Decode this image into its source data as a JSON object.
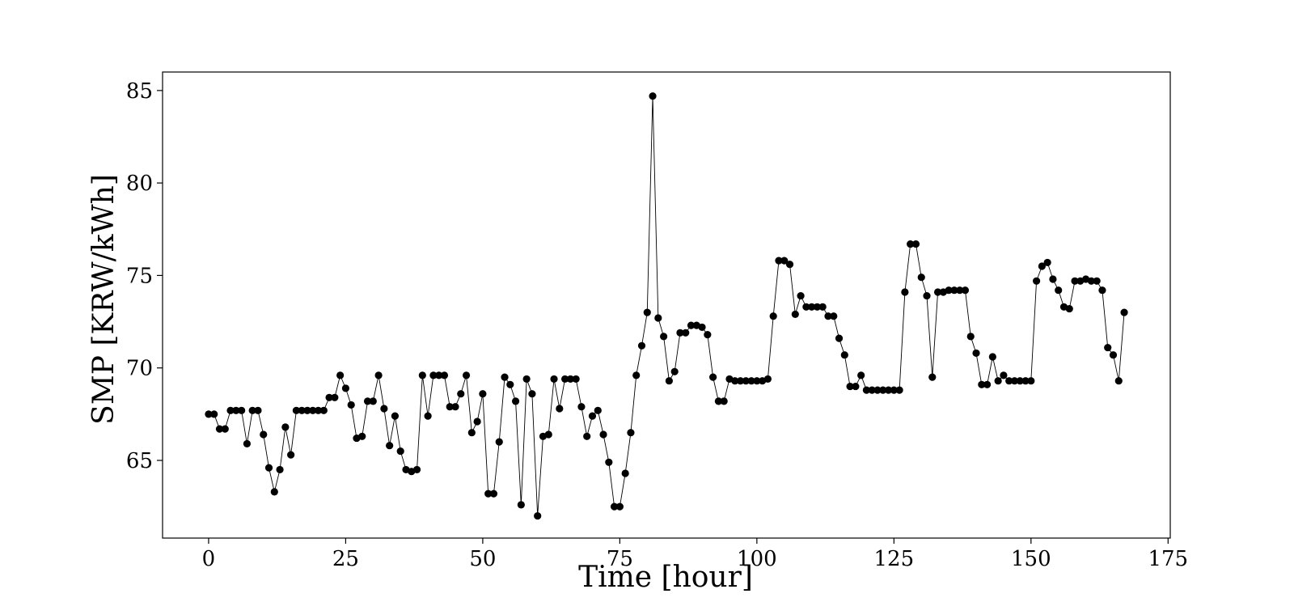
{
  "chart_data": {
    "type": "line",
    "title": "",
    "xlabel": "Time [hour]",
    "ylabel": "SMP [KRW/kWh]",
    "xlim": [
      -8.4,
      175.4
    ],
    "ylim": [
      60.8,
      86.0
    ],
    "xticks": [
      0,
      25,
      50,
      75,
      100,
      125,
      150,
      175
    ],
    "yticks": [
      65,
      70,
      75,
      80,
      85
    ],
    "grid": false,
    "legend": false,
    "marker": "circle",
    "line_color": "#000000",
    "marker_color": "#000000",
    "series": [
      {
        "x_start": 0,
        "x_step": 1,
        "values": [
          67.5,
          67.5,
          66.7,
          66.7,
          67.7,
          67.7,
          67.7,
          65.9,
          67.7,
          67.7,
          66.4,
          64.6,
          63.3,
          64.5,
          66.8,
          65.3,
          67.7,
          67.7,
          67.7,
          67.7,
          67.7,
          67.7,
          68.4,
          68.4,
          69.6,
          68.9,
          68.0,
          66.2,
          66.3,
          68.2,
          68.2,
          69.6,
          67.8,
          65.8,
          67.4,
          65.5,
          64.5,
          64.4,
          64.5,
          69.6,
          67.4,
          69.6,
          69.6,
          69.6,
          67.9,
          67.9,
          68.6,
          69.6,
          66.5,
          67.1,
          68.6,
          63.2,
          63.2,
          66.0,
          69.5,
          69.1,
          68.2,
          62.6,
          69.4,
          68.6,
          62.0,
          66.3,
          66.4,
          69.4,
          67.8,
          69.4,
          69.4,
          69.4,
          67.9,
          66.3,
          67.4,
          67.7,
          66.4,
          64.9,
          62.5,
          62.5,
          64.3,
          66.5,
          69.6,
          71.2,
          73.0,
          84.7,
          72.7,
          71.7,
          69.3,
          69.8,
          71.9,
          71.9,
          72.3,
          72.3,
          72.2,
          71.8,
          69.5,
          68.2,
          68.2,
          69.4,
          69.3,
          69.3,
          69.3,
          69.3,
          69.3,
          69.3,
          69.4,
          72.8,
          75.8,
          75.8,
          75.6,
          72.9,
          73.9,
          73.3,
          73.3,
          73.3,
          73.3,
          72.8,
          72.8,
          71.6,
          70.7,
          69.0,
          69.0,
          69.6,
          68.8,
          68.8,
          68.8,
          68.8,
          68.8,
          68.8,
          68.8,
          74.1,
          76.7,
          76.7,
          74.9,
          73.9,
          69.5,
          74.1,
          74.1,
          74.2,
          74.2,
          74.2,
          74.2,
          71.7,
          70.8,
          69.1,
          69.1,
          70.6,
          69.3,
          69.6,
          69.3,
          69.3,
          69.3,
          69.3,
          69.3,
          74.7,
          75.5,
          75.7,
          74.8,
          74.2,
          73.3,
          73.2,
          74.7,
          74.7,
          74.8,
          74.7,
          74.7,
          74.2,
          71.1,
          70.7,
          69.3,
          73.0
        ]
      }
    ]
  }
}
